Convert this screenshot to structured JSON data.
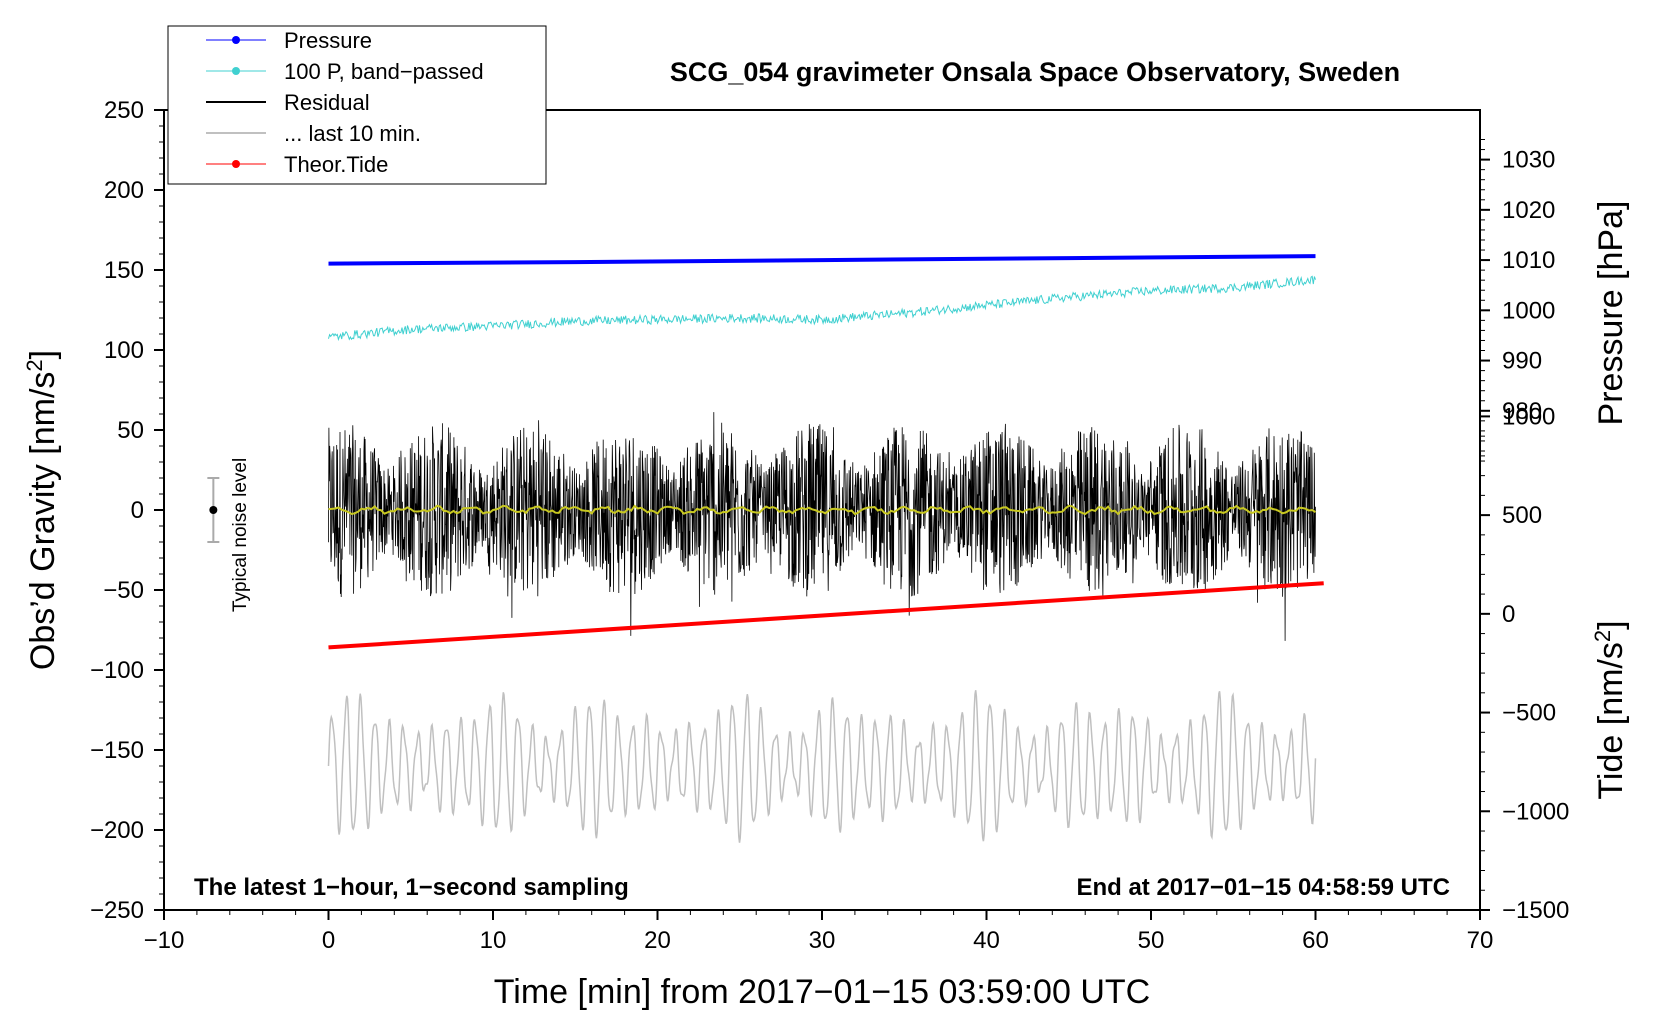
{
  "chart_data": {
    "type": "line",
    "title": "SCG_054 gravimeter Onsala Space Observatory, Sweden",
    "xlabel": "Time [min] from 2017−01−15 03:59:00 UTC",
    "ylabel_left": "Obs’d Gravity [nm/s²]",
    "ylabel_left_parts": {
      "main": "Obs’d Gravity [nm/s",
      "sup": "2",
      "tail": "]"
    },
    "ylabel_right_pressure": "Pressure [hPa]",
    "ylabel_right_tide": "Tide [nm/s²]",
    "ylabel_right_tide_parts": {
      "main": "Tide [nm/s",
      "sup": "2",
      "tail": "]"
    },
    "xlim": [
      -10,
      70
    ],
    "ylim": [
      -250,
      250
    ],
    "x_ticks": [
      "−10",
      "0",
      "10",
      "20",
      "30",
      "40",
      "50",
      "60",
      "70"
    ],
    "x_tick_values": [
      -10,
      0,
      10,
      20,
      30,
      40,
      50,
      60,
      70
    ],
    "y_ticks": [
      "250",
      "200",
      "150",
      "100",
      "50",
      "0",
      "−50",
      "−100",
      "−150",
      "−200",
      "−250"
    ],
    "y_tick_values": [
      250,
      200,
      150,
      100,
      50,
      0,
      -50,
      -100,
      -150,
      -200,
      -250
    ],
    "pressure_axis": {
      "ticks": [
        "1030",
        "1020",
        "1010",
        "1000",
        "990",
        "980"
      ],
      "values": [
        1030,
        1020,
        1010,
        1000,
        990,
        980
      ],
      "map": {
        "p1": 1030,
        "y1": 219,
        "p2": 980,
        "y2": 62
      }
    },
    "tide_axis": {
      "ticks": [
        "1000",
        "500",
        "0",
        "−500",
        "−1000",
        "−1500"
      ],
      "values": [
        1000,
        500,
        0,
        -500,
        -1000,
        -1500
      ],
      "map": {
        "t1": 1000,
        "y1": 58.5,
        "t2": -1500,
        "y2": -250
      }
    },
    "series": [
      {
        "name": "Pressure",
        "color": "#0000ff",
        "unit": "hPa",
        "x": [
          0,
          15,
          30,
          45,
          60
        ],
        "values": [
          1009.3,
          1009.6,
          1010.0,
          1010.4,
          1010.8
        ]
      },
      {
        "name": "100 P, band−passed",
        "color": "#40d0d0",
        "unit": "nm/s2",
        "x": [
          0,
          5,
          10,
          15,
          20,
          25,
          30,
          35,
          40,
          45,
          50,
          55,
          60
        ],
        "values": [
          108,
          113,
          115,
          118,
          119,
          120,
          119,
          123,
          128,
          133,
          137,
          139,
          144
        ]
      },
      {
        "name": "Residual",
        "color": "#000000",
        "unit": "nm/s2",
        "x_range": [
          0,
          60
        ],
        "mean": 0,
        "amplitude_envelope": 55
      },
      {
        "name": "... last 10 min.",
        "color": "#c0c0c0",
        "unit": "nm/s2",
        "x_range": [
          0,
          60
        ],
        "center": -160,
        "amplitude_envelope": 45
      },
      {
        "name": "Theor.Tide",
        "color": "#ff0000",
        "unit": "nm/s2 (tide axis)",
        "x": [
          0,
          60.5
        ],
        "values": [
          -170,
          155
        ]
      }
    ],
    "mean_line": {
      "color": "#c8c820",
      "value": 0
    },
    "noise_bar": {
      "x": -7,
      "center": 0,
      "low": -20,
      "high": 20,
      "label": "Typical noise level"
    },
    "annotations": {
      "bottom_left": "The latest 1−hour, 1−second sampling",
      "bottom_right": "End at 2017−01−15 04:58:59 UTC"
    },
    "legend_position": "top-left",
    "grid": false
  }
}
